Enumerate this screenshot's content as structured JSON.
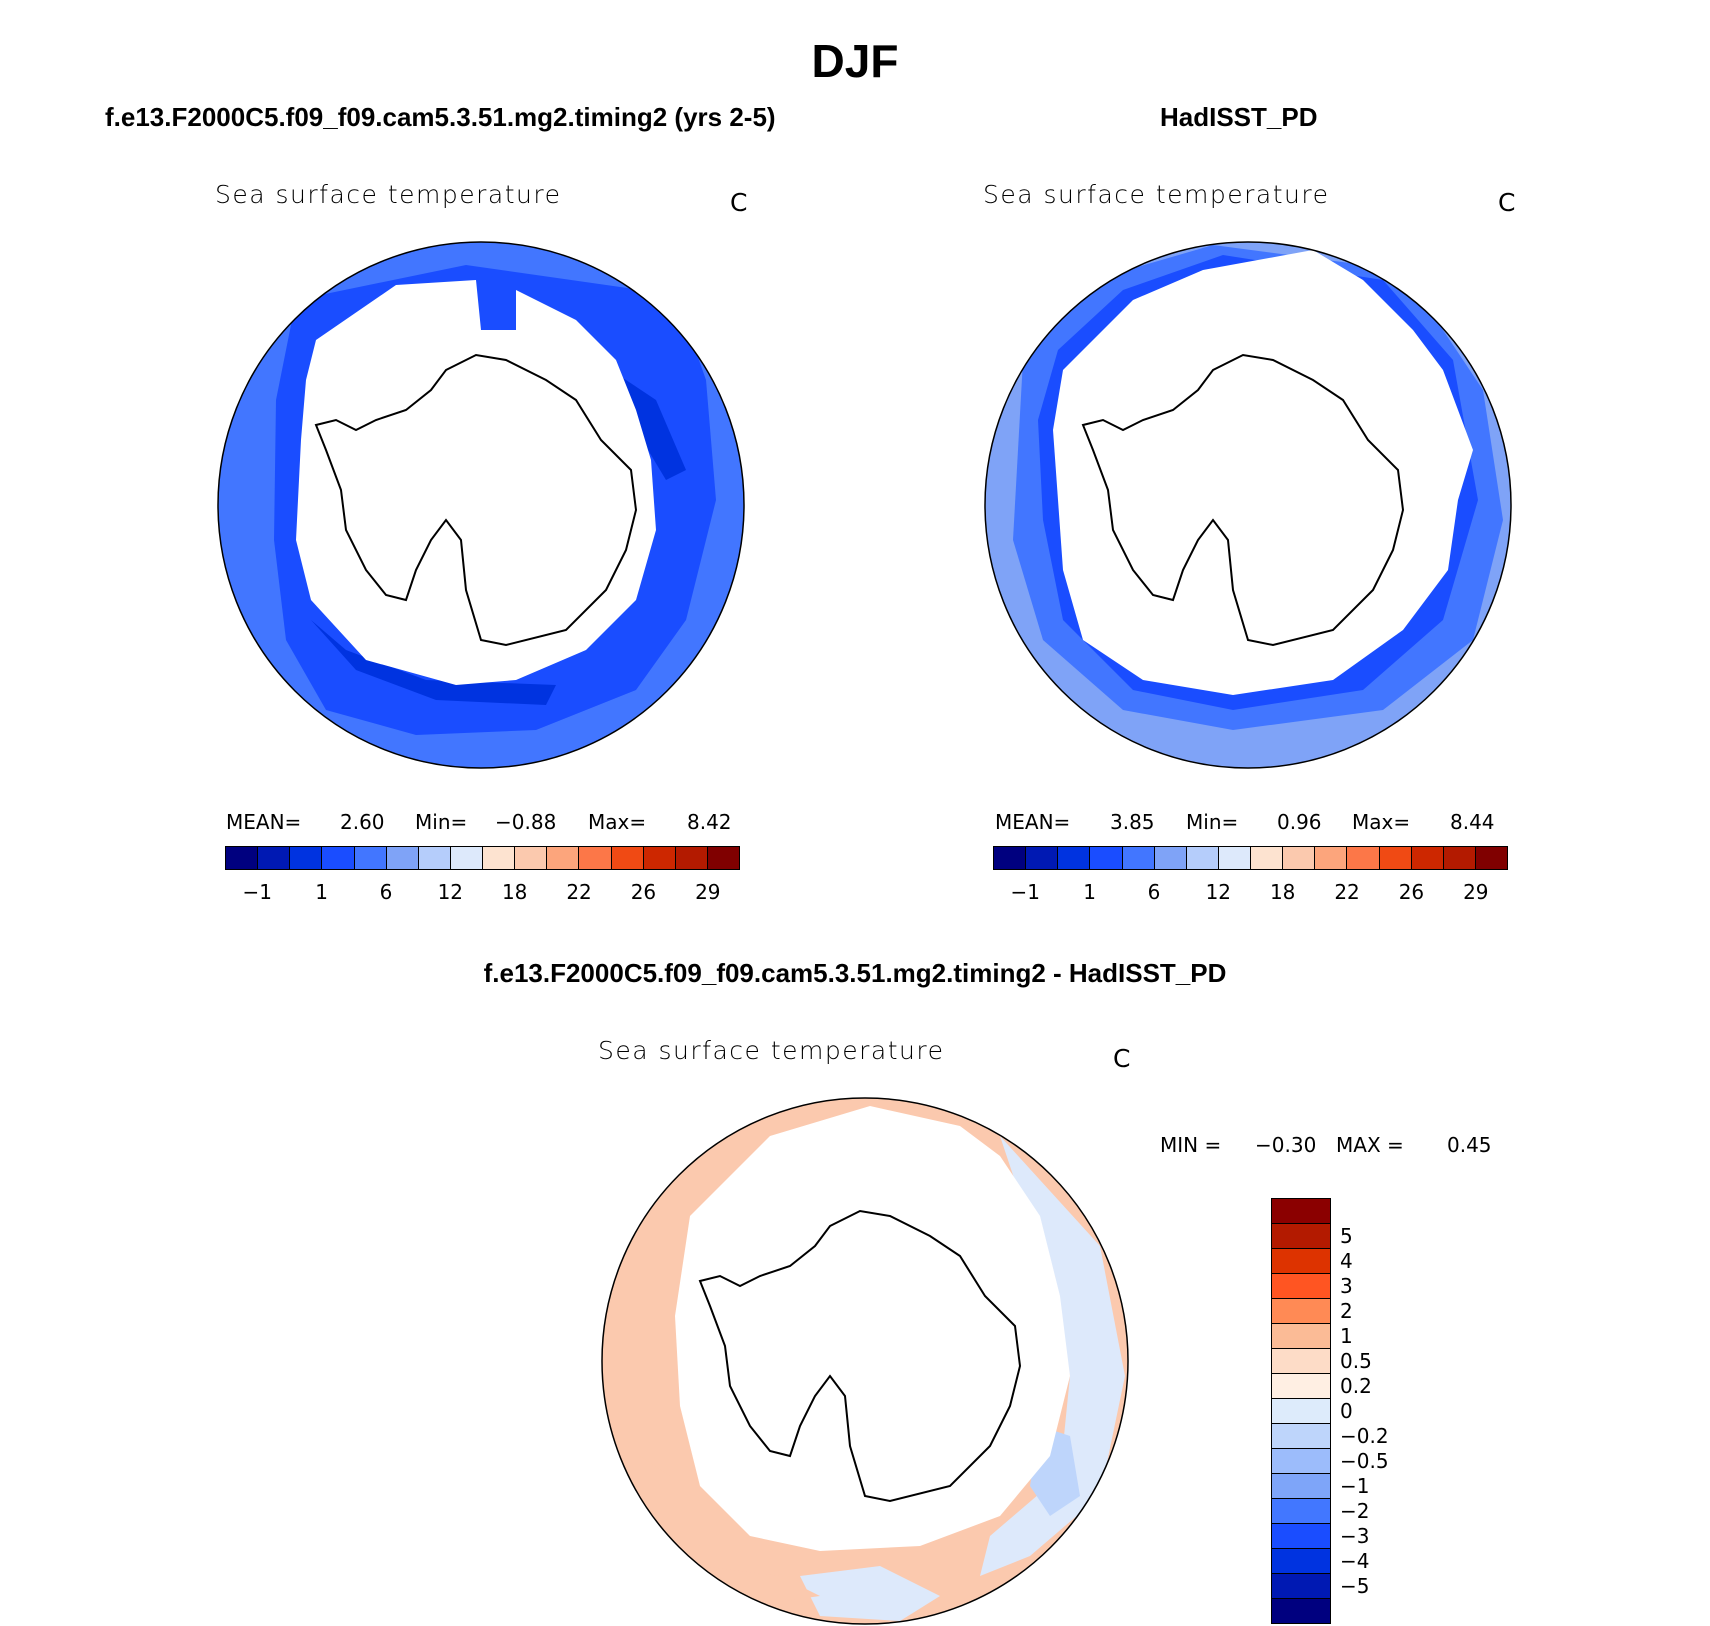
{
  "page_title": "DJF",
  "colors": {
    "abs_scale": [
      "#00007f",
      "#0019b3",
      "#0033e0",
      "#1a4dff",
      "#4276ff",
      "#7fa3f7",
      "#b5cdfb",
      "#dde9fb",
      "#fde3d0",
      "#fbc9ae",
      "#fca57c",
      "#fc7748",
      "#f04a14",
      "#cd2700",
      "#b31a00",
      "#800000"
    ],
    "diff_scale": [
      "#8b0000",
      "#b31a00",
      "#dd3300",
      "#ff5522",
      "#ff8a55",
      "#fbbb96",
      "#fddcc7",
      "#ffefe3",
      "#ddebfb",
      "#bed5fb",
      "#9cbcfb",
      "#7ea5f9",
      "#4277ff",
      "#1a4dff",
      "#0033e0",
      "#0019b3",
      "#00007f"
    ],
    "fill_model_outer": "#4276ff",
    "fill_model_inner": "#1a4dff",
    "fill_model_ice": "#0033e0",
    "fill_obs_outer": "#7fa3f7",
    "fill_obs_mid": "#4276ff",
    "fill_obs_inner": "#1a4dff",
    "fill_diff_pos": "#fbc9ae",
    "fill_diff_neg": "#dde9fb",
    "fill_diff_neg2": "#bed5fb"
  },
  "panels": [
    {
      "case_title": "f.e13.F2000C5.f09_f09.cam5.3.51.mg2.timing2 (yrs 2-5)",
      "variable": "Sea surface temperature",
      "units": "C",
      "stats": {
        "mean_label": "MEAN=",
        "mean": "2.60",
        "min_label": "Min=",
        "min": "−0.88",
        "max_label": "Max=",
        "max": "8.42"
      },
      "colorbar_ticks": [
        "−1",
        "1",
        "6",
        "12",
        "18",
        "22",
        "26",
        "29"
      ]
    },
    {
      "case_title": "HadISST_PD",
      "variable": "Sea surface temperature",
      "units": "C",
      "stats": {
        "mean_label": "MEAN=",
        "mean": "3.85",
        "min_label": "Min=",
        "min": "0.96",
        "max_label": "Max=",
        "max": "8.44"
      },
      "colorbar_ticks": [
        "−1",
        "1",
        "6",
        "12",
        "18",
        "22",
        "26",
        "29"
      ]
    }
  ],
  "diff_panel": {
    "case_title": "f.e13.F2000C5.f09_f09.cam5.3.51.mg2.timing2 - HadISST_PD",
    "variable": "Sea surface temperature",
    "units": "C",
    "stats_min_label": "MIN =",
    "stats_min": "−0.30",
    "stats_max_label": "MAX =",
    "stats_max": "0.45",
    "colorbar_levels": [
      "5",
      "4",
      "3",
      "2",
      "1",
      "0.5",
      "0.2",
      "0",
      "−0.2",
      "−0.5",
      "−1",
      "−2",
      "−3",
      "−4",
      "−5"
    ]
  }
}
